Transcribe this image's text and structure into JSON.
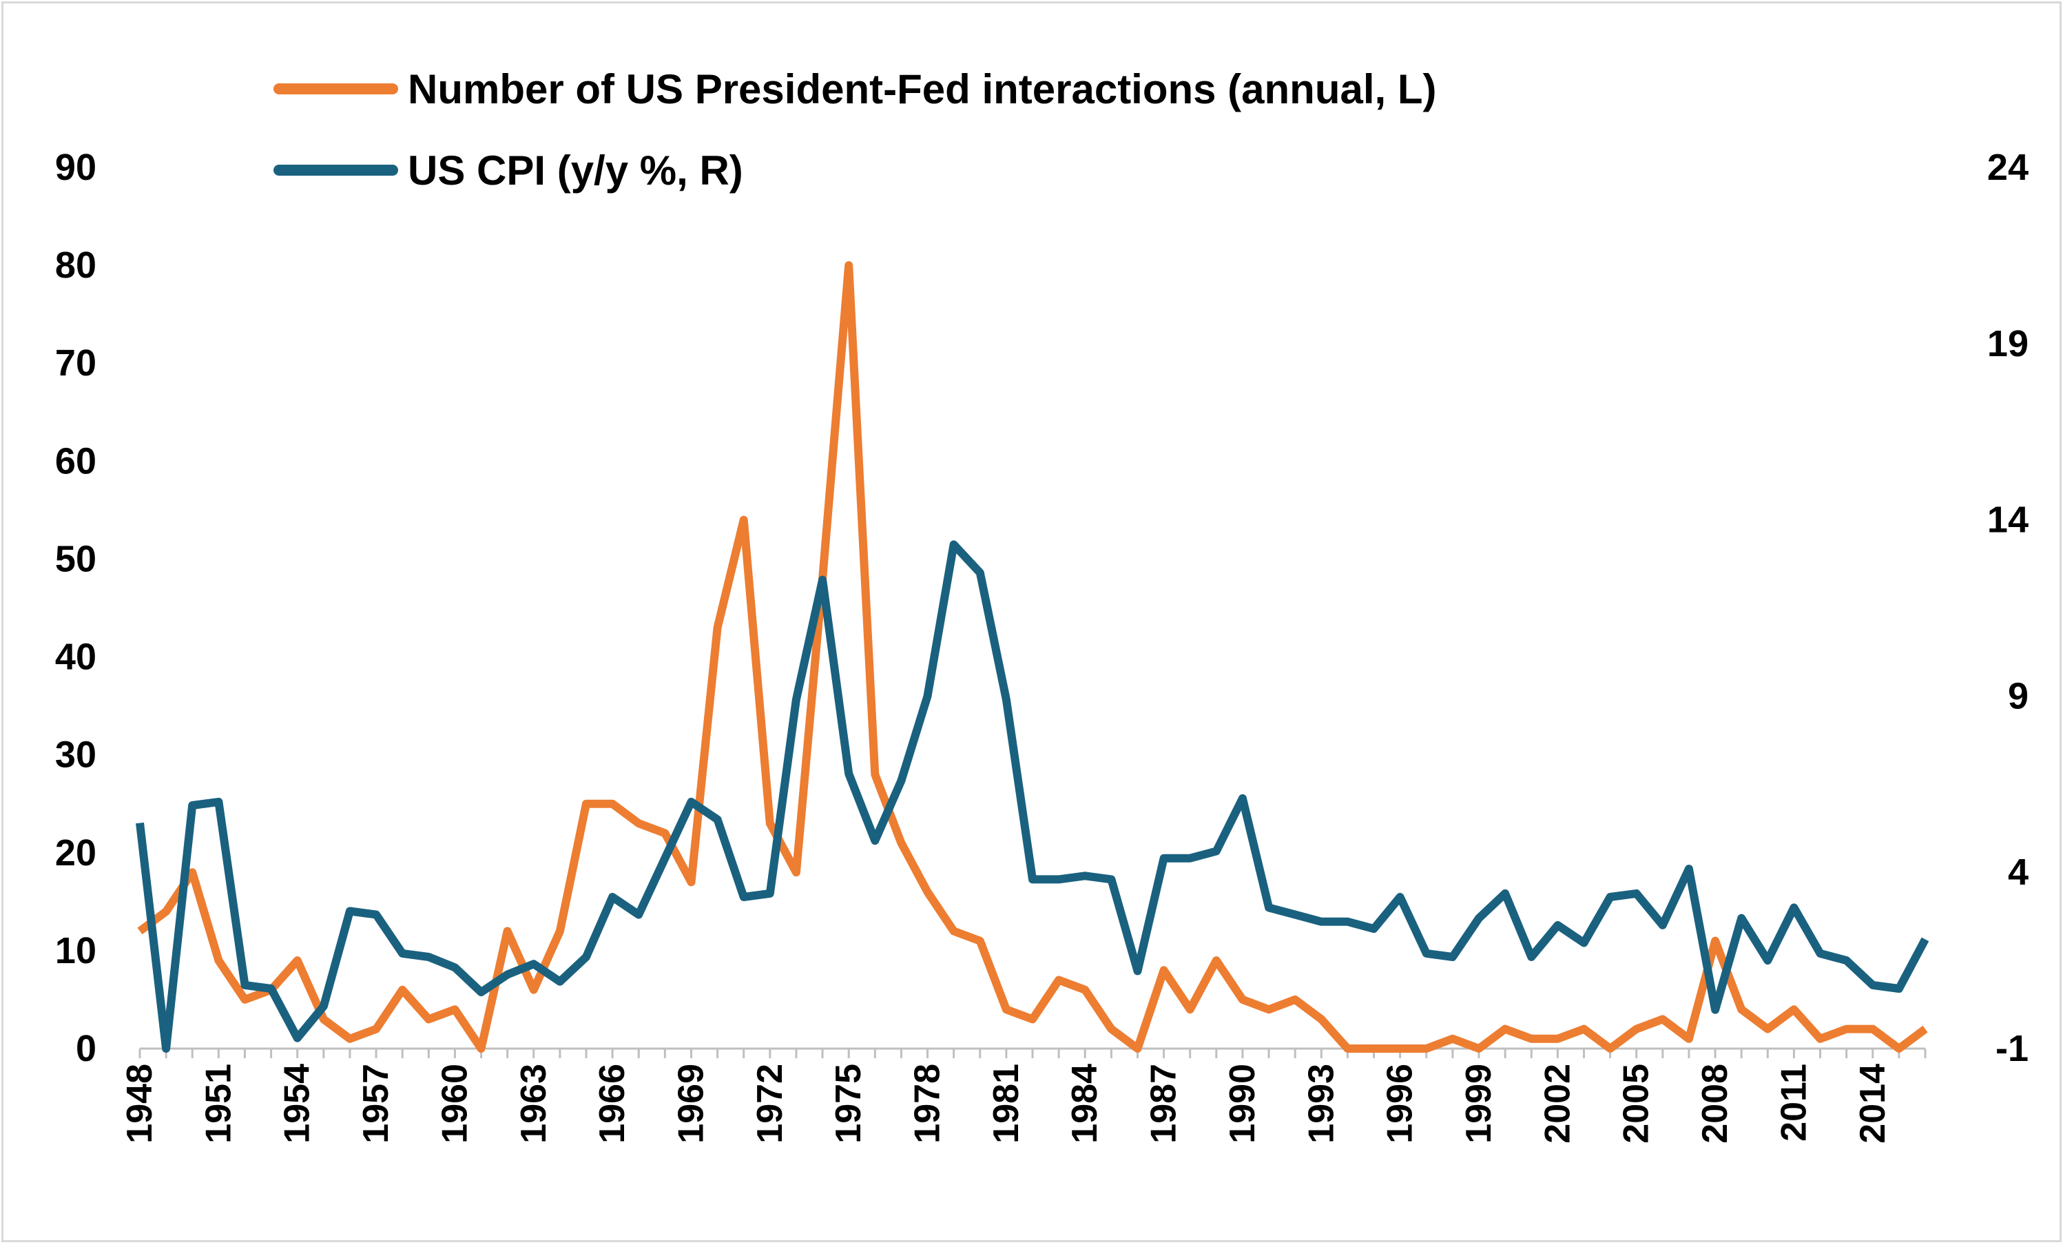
{
  "chart_data": {
    "type": "line",
    "title": "",
    "xlabel": "",
    "x": [
      1948,
      1949,
      1950,
      1951,
      1952,
      1953,
      1954,
      1955,
      1956,
      1957,
      1958,
      1959,
      1960,
      1961,
      1962,
      1963,
      1964,
      1965,
      1966,
      1967,
      1968,
      1969,
      1970,
      1971,
      1972,
      1973,
      1974,
      1975,
      1976,
      1977,
      1978,
      1979,
      1980,
      1981,
      1982,
      1983,
      1984,
      1985,
      1986,
      1987,
      1988,
      1989,
      1990,
      1991,
      1992,
      1993,
      1994,
      1995,
      1996,
      1997,
      1998,
      1999,
      2000,
      2001,
      2002,
      2003,
      2004,
      2005,
      2006,
      2007,
      2008,
      2009,
      2010,
      2011,
      2012,
      2013,
      2014,
      2015,
      2016
    ],
    "x_tick_labels": [
      "1948",
      "1951",
      "1954",
      "1957",
      "1960",
      "1963",
      "1966",
      "1969",
      "1972",
      "1975",
      "1978",
      "1981",
      "1984",
      "1987",
      "1990",
      "1993",
      "1996",
      "1999",
      "2002",
      "2005",
      "2008",
      "2011",
      "2014"
    ],
    "y_left": {
      "ylim": [
        0,
        90
      ],
      "ticks": [
        "0",
        "10",
        "20",
        "30",
        "40",
        "50",
        "60",
        "70",
        "80",
        "90"
      ]
    },
    "y_right": {
      "ylim": [
        -1,
        24
      ],
      "ticks": [
        "-1",
        "4",
        "9",
        "14",
        "19",
        "24"
      ]
    },
    "legend_position": "top-center",
    "series": [
      {
        "name": "Number of US President-Fed interactions (annual, L)",
        "axis": "left",
        "color": "#ed7d31",
        "values": [
          12,
          14,
          18,
          9,
          5,
          6,
          9,
          3,
          1,
          2,
          6,
          3,
          4,
          0,
          12,
          6,
          12,
          25,
          25,
          23,
          22,
          17,
          43,
          54,
          23,
          18,
          48,
          80,
          28,
          21,
          16,
          12,
          11,
          4,
          3,
          7,
          6,
          2,
          0,
          8,
          4,
          9,
          5,
          4,
          5,
          3,
          0,
          0,
          0,
          0,
          1,
          0,
          2,
          1,
          1,
          2,
          0,
          2,
          3,
          1,
          11,
          4,
          2,
          4,
          1,
          2,
          2,
          0,
          2
        ]
      },
      {
        "name": "US CPI (y/y %, R)",
        "axis": "right",
        "color": "#1a617f",
        "values": [
          5.4,
          -1.0,
          5.9,
          6.0,
          0.8,
          0.7,
          -0.7,
          0.2,
          2.9,
          2.8,
          1.7,
          1.6,
          1.3,
          0.6,
          1.1,
          1.4,
          0.9,
          1.6,
          3.3,
          2.8,
          4.4,
          6.0,
          5.5,
          3.3,
          3.4,
          8.9,
          12.3,
          6.8,
          4.9,
          6.6,
          9.0,
          13.3,
          12.5,
          8.9,
          3.8,
          3.8,
          3.9,
          3.8,
          1.2,
          4.4,
          4.4,
          4.6,
          6.1,
          3.0,
          2.8,
          2.6,
          2.6,
          2.4,
          3.3,
          1.7,
          1.6,
          2.7,
          3.4,
          1.6,
          2.5,
          2.0,
          3.3,
          3.4,
          2.5,
          4.1,
          0.1,
          2.7,
          1.5,
          3.0,
          1.7,
          1.5,
          0.8,
          0.7,
          2.1
        ]
      }
    ]
  }
}
